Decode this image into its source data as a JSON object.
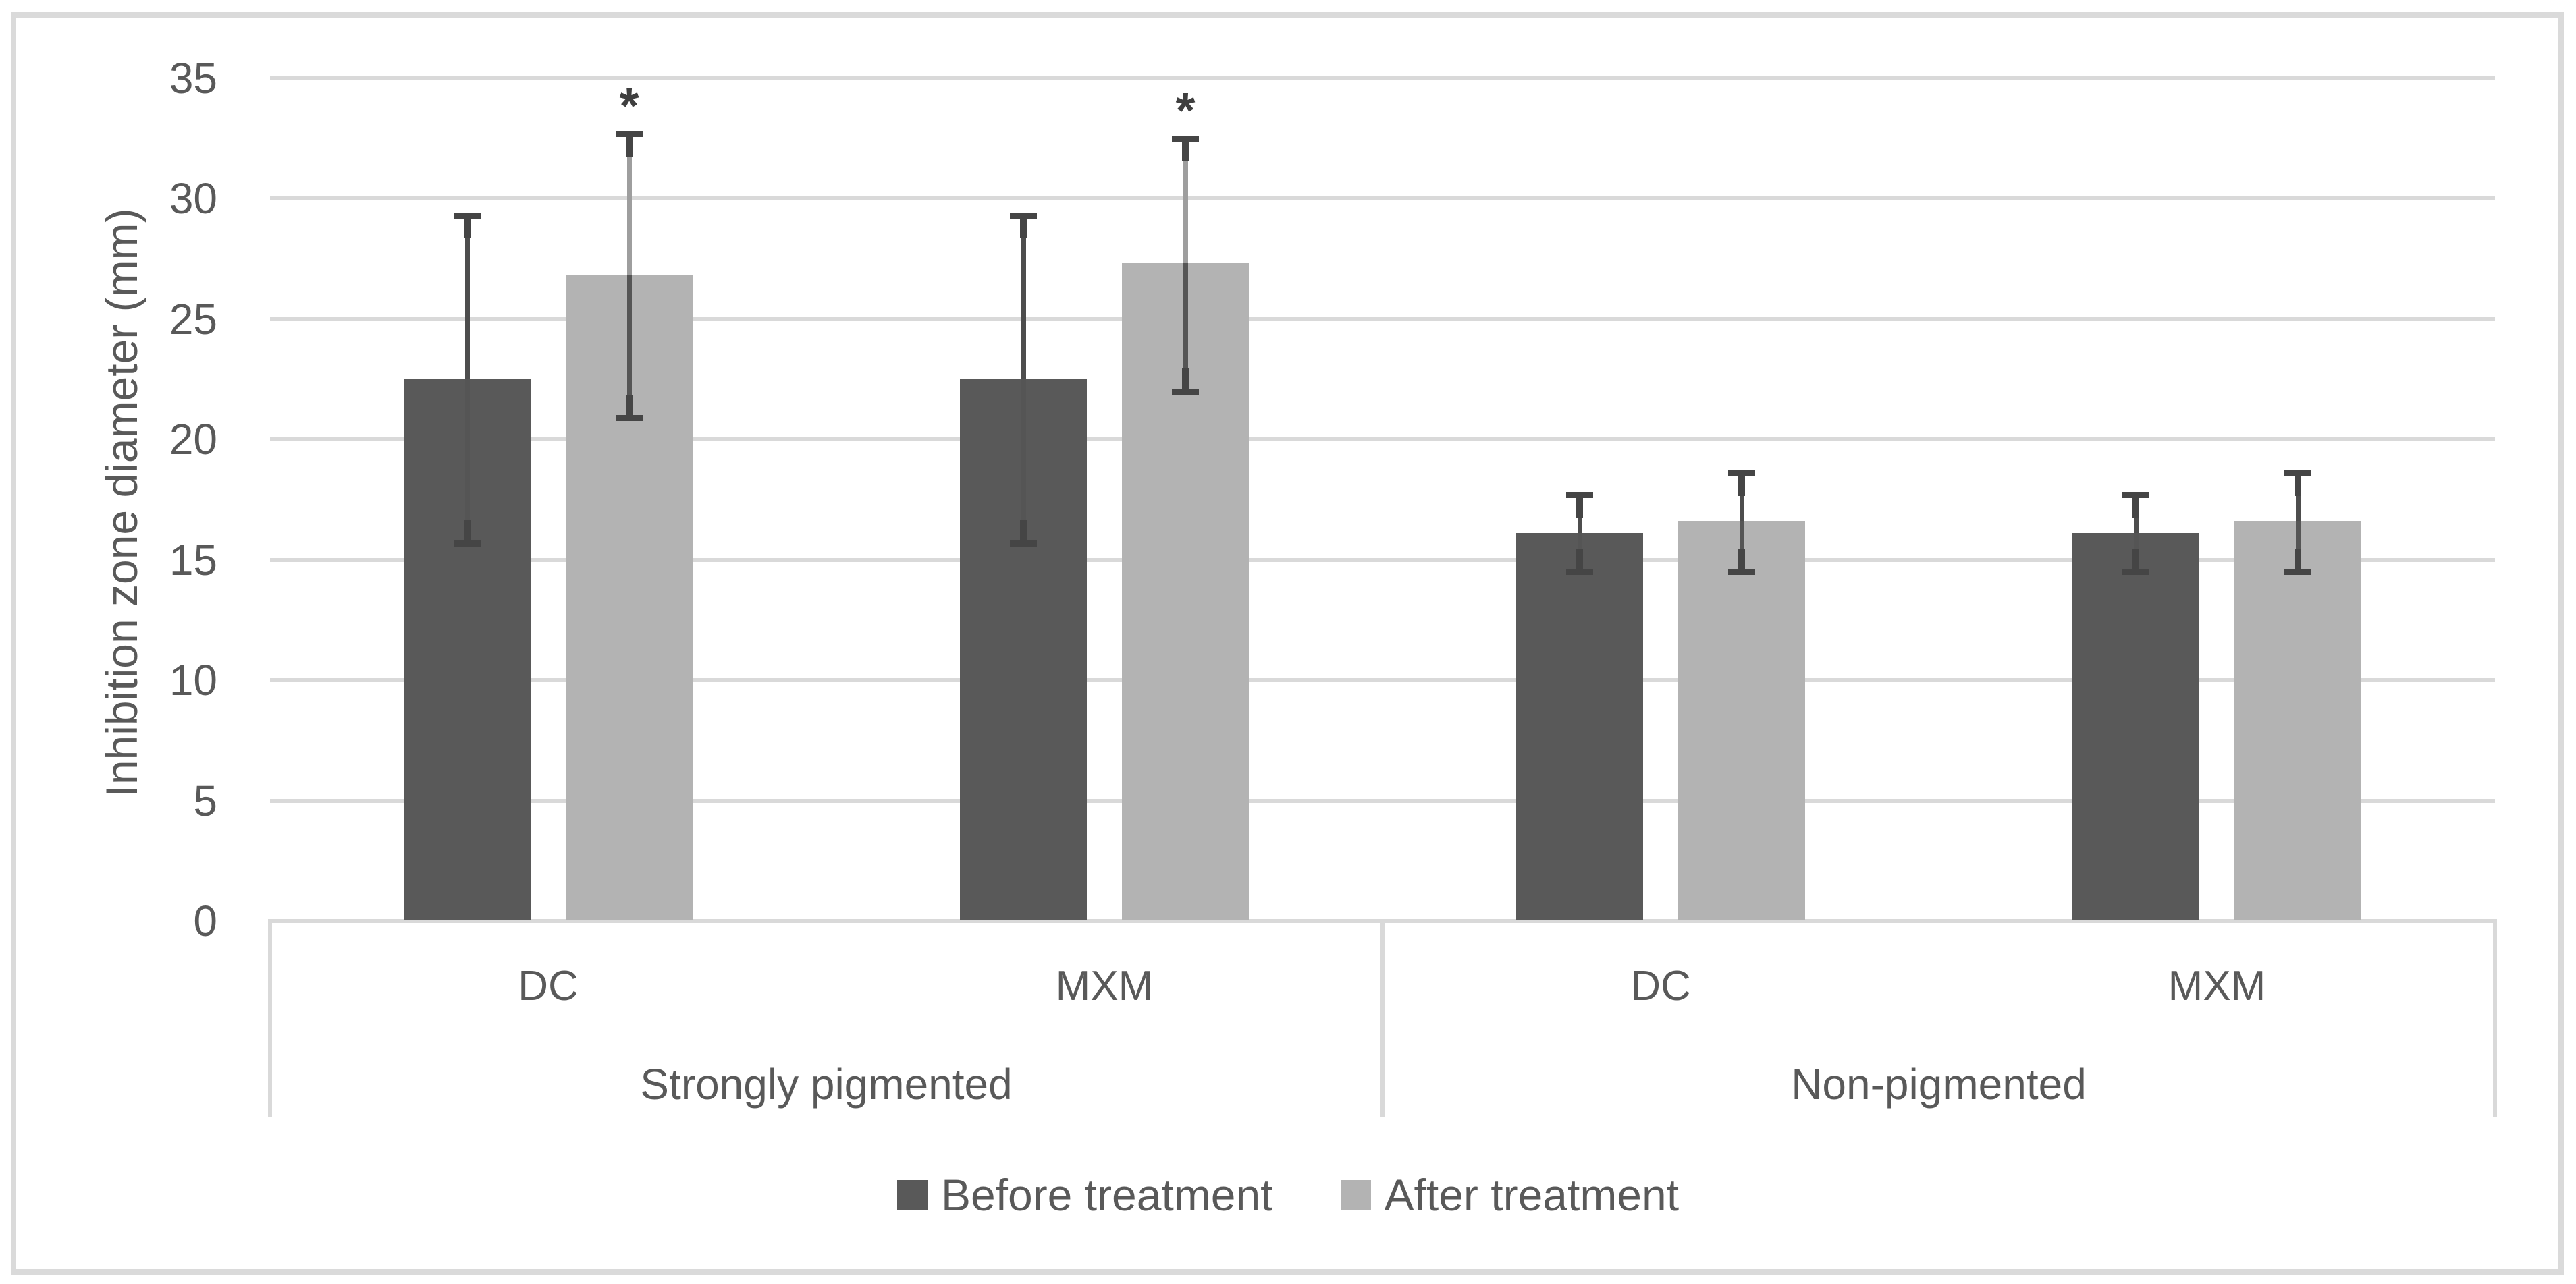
{
  "figure": {
    "description": "Grouped bar chart with standard-deviation error bars",
    "background": "#ffffff",
    "border_color": "#dadada"
  },
  "colors": {
    "grid": "#d9d9d9",
    "axis": "#d9d9d9",
    "separator": "#d9d9d9",
    "text": "#595959",
    "error_cap": "#454545",
    "error_inner": "#555555",
    "asterisk": "#3f3f3f"
  },
  "chart_data": {
    "type": "bar",
    "title": "",
    "xlabel": "",
    "ylabel": "Inhibition zone diameter (mm)",
    "ylim": [
      0,
      35
    ],
    "yticks": [
      0,
      5,
      10,
      15,
      20,
      25,
      30,
      35
    ],
    "grid": true,
    "legend_position": "bottom",
    "group_labels": [
      "Strongly pigmented",
      "Non-pigmented"
    ],
    "categories": [
      "DC",
      "MXM",
      "DC",
      "MXM"
    ],
    "series": [
      {
        "name": "Before treatment",
        "color": "#595959",
        "values": [
          22.5,
          22.5,
          16.1,
          16.1
        ],
        "err_low": [
          15.7,
          15.7,
          14.5,
          14.5
        ],
        "err_high": [
          29.3,
          29.3,
          17.7,
          17.7
        ],
        "error_line_colors": [
          "#4d4d4d",
          "#4d4d4d",
          "#4d4d4d",
          "#4d4d4d"
        ],
        "significance": [
          "",
          "",
          "",
          ""
        ]
      },
      {
        "name": "After treatment",
        "color": "#b3b3b3",
        "values": [
          26.8,
          27.3,
          16.6,
          16.6
        ],
        "err_low": [
          20.9,
          22.0,
          14.5,
          14.5
        ],
        "err_high": [
          32.7,
          32.5,
          18.6,
          18.6
        ],
        "error_line_colors": [
          "#9e9e9e",
          "#9e9e9e",
          "#4d4d4d",
          "#4d4d4d"
        ],
        "significance": [
          "*",
          "*",
          "",
          ""
        ]
      }
    ]
  }
}
